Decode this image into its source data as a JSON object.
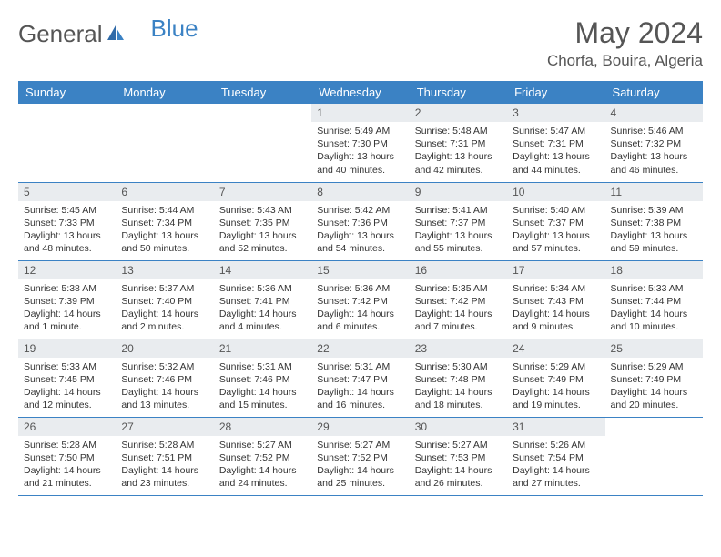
{
  "logo": {
    "text1": "General",
    "text2": "Blue"
  },
  "title": "May 2024",
  "location": "Chorfa, Bouira, Algeria",
  "weekdays": [
    "Sunday",
    "Monday",
    "Tuesday",
    "Wednesday",
    "Thursday",
    "Friday",
    "Saturday"
  ],
  "colors": {
    "header_bg": "#3b82c4",
    "header_text": "#ffffff",
    "daynum_bg": "#e9ecef",
    "border": "#3b82c4"
  },
  "weeks": [
    [
      null,
      null,
      null,
      {
        "n": "1",
        "sr": "5:49 AM",
        "ss": "7:30 PM",
        "dl": "13 hours and 40 minutes."
      },
      {
        "n": "2",
        "sr": "5:48 AM",
        "ss": "7:31 PM",
        "dl": "13 hours and 42 minutes."
      },
      {
        "n": "3",
        "sr": "5:47 AM",
        "ss": "7:31 PM",
        "dl": "13 hours and 44 minutes."
      },
      {
        "n": "4",
        "sr": "5:46 AM",
        "ss": "7:32 PM",
        "dl": "13 hours and 46 minutes."
      }
    ],
    [
      {
        "n": "5",
        "sr": "5:45 AM",
        "ss": "7:33 PM",
        "dl": "13 hours and 48 minutes."
      },
      {
        "n": "6",
        "sr": "5:44 AM",
        "ss": "7:34 PM",
        "dl": "13 hours and 50 minutes."
      },
      {
        "n": "7",
        "sr": "5:43 AM",
        "ss": "7:35 PM",
        "dl": "13 hours and 52 minutes."
      },
      {
        "n": "8",
        "sr": "5:42 AM",
        "ss": "7:36 PM",
        "dl": "13 hours and 54 minutes."
      },
      {
        "n": "9",
        "sr": "5:41 AM",
        "ss": "7:37 PM",
        "dl": "13 hours and 55 minutes."
      },
      {
        "n": "10",
        "sr": "5:40 AM",
        "ss": "7:37 PM",
        "dl": "13 hours and 57 minutes."
      },
      {
        "n": "11",
        "sr": "5:39 AM",
        "ss": "7:38 PM",
        "dl": "13 hours and 59 minutes."
      }
    ],
    [
      {
        "n": "12",
        "sr": "5:38 AM",
        "ss": "7:39 PM",
        "dl": "14 hours and 1 minute."
      },
      {
        "n": "13",
        "sr": "5:37 AM",
        "ss": "7:40 PM",
        "dl": "14 hours and 2 minutes."
      },
      {
        "n": "14",
        "sr": "5:36 AM",
        "ss": "7:41 PM",
        "dl": "14 hours and 4 minutes."
      },
      {
        "n": "15",
        "sr": "5:36 AM",
        "ss": "7:42 PM",
        "dl": "14 hours and 6 minutes."
      },
      {
        "n": "16",
        "sr": "5:35 AM",
        "ss": "7:42 PM",
        "dl": "14 hours and 7 minutes."
      },
      {
        "n": "17",
        "sr": "5:34 AM",
        "ss": "7:43 PM",
        "dl": "14 hours and 9 minutes."
      },
      {
        "n": "18",
        "sr": "5:33 AM",
        "ss": "7:44 PM",
        "dl": "14 hours and 10 minutes."
      }
    ],
    [
      {
        "n": "19",
        "sr": "5:33 AM",
        "ss": "7:45 PM",
        "dl": "14 hours and 12 minutes."
      },
      {
        "n": "20",
        "sr": "5:32 AM",
        "ss": "7:46 PM",
        "dl": "14 hours and 13 minutes."
      },
      {
        "n": "21",
        "sr": "5:31 AM",
        "ss": "7:46 PM",
        "dl": "14 hours and 15 minutes."
      },
      {
        "n": "22",
        "sr": "5:31 AM",
        "ss": "7:47 PM",
        "dl": "14 hours and 16 minutes."
      },
      {
        "n": "23",
        "sr": "5:30 AM",
        "ss": "7:48 PM",
        "dl": "14 hours and 18 minutes."
      },
      {
        "n": "24",
        "sr": "5:29 AM",
        "ss": "7:49 PM",
        "dl": "14 hours and 19 minutes."
      },
      {
        "n": "25",
        "sr": "5:29 AM",
        "ss": "7:49 PM",
        "dl": "14 hours and 20 minutes."
      }
    ],
    [
      {
        "n": "26",
        "sr": "5:28 AM",
        "ss": "7:50 PM",
        "dl": "14 hours and 21 minutes."
      },
      {
        "n": "27",
        "sr": "5:28 AM",
        "ss": "7:51 PM",
        "dl": "14 hours and 23 minutes."
      },
      {
        "n": "28",
        "sr": "5:27 AM",
        "ss": "7:52 PM",
        "dl": "14 hours and 24 minutes."
      },
      {
        "n": "29",
        "sr": "5:27 AM",
        "ss": "7:52 PM",
        "dl": "14 hours and 25 minutes."
      },
      {
        "n": "30",
        "sr": "5:27 AM",
        "ss": "7:53 PM",
        "dl": "14 hours and 26 minutes."
      },
      {
        "n": "31",
        "sr": "5:26 AM",
        "ss": "7:54 PM",
        "dl": "14 hours and 27 minutes."
      },
      null
    ]
  ]
}
